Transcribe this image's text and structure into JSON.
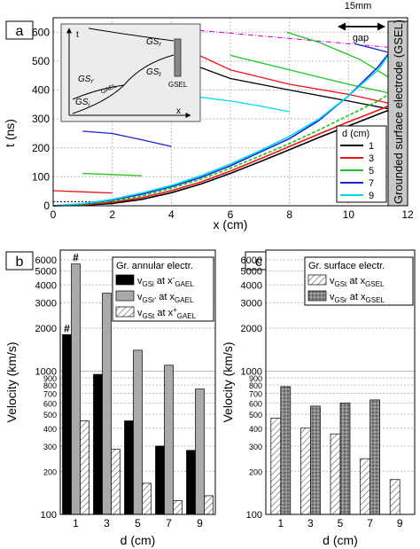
{
  "chart_data": [
    {
      "type": "line",
      "panel_label": "a",
      "xlabel": "x (cm)",
      "ylabel": "t (ns)",
      "xlim": [
        0,
        12
      ],
      "ylim": [
        0,
        650
      ],
      "x_ticks": [
        0,
        2,
        4,
        6,
        8,
        10,
        12
      ],
      "y_ticks": [
        0,
        100,
        200,
        300,
        400,
        500,
        600
      ],
      "grid": true,
      "legend": {
        "title": "d (cm)",
        "placement": "right",
        "entries": [
          "1",
          "3",
          "5",
          "7",
          "9"
        ]
      },
      "colors": {
        "1": "#000000",
        "3": "#e8141c",
        "5": "#22c022",
        "7": "#1a26c8",
        "9": "#00d8f0",
        "gsel_marker": "#d000d0"
      },
      "annotations": {
        "gap_size": "15mm",
        "gap": "gap",
        "electrode": "Grounded surface electrode (GSEL)"
      },
      "inset": {
        "labels": {
          "t": "t",
          "x": "x",
          "gs_r_top": "GS",
          "gs_r_top_sub": "r",
          "gs_r_prime": "GS",
          "gs_r_prime_sub": "r'",
          "gs_t": "GS",
          "gs_t_sub": "t",
          "gs_i": "GS",
          "gs_i_sub": "i",
          "gael": "GAEL",
          "gsel": "GSEL"
        }
      },
      "series": [
        {
          "name": "1",
          "x": [
            0,
            1,
            2,
            3,
            4,
            5,
            6,
            7,
            8,
            9,
            10,
            11,
            11.35
          ],
          "y": [
            0,
            2,
            8,
            22,
            45,
            75,
            112,
            152,
            194,
            236,
            276,
            316,
            330
          ]
        },
        {
          "name": "3",
          "x": [
            0,
            1,
            2,
            3,
            4,
            5,
            6,
            7,
            8,
            9,
            10,
            11,
            11.35
          ],
          "y": [
            0,
            3,
            12,
            28,
            52,
            82,
            120,
            162,
            205,
            248,
            290,
            330,
            345
          ]
        },
        {
          "name": "5",
          "x": [
            0,
            1,
            2,
            3,
            4,
            5,
            6,
            7,
            8,
            9,
            10,
            11,
            11.35
          ],
          "y": [
            0,
            5,
            16,
            34,
            60,
            92,
            130,
            172,
            215,
            262,
            312,
            362,
            385
          ]
        },
        {
          "name": "7",
          "x": [
            0,
            1,
            2,
            3,
            4,
            5,
            6,
            7,
            8,
            9,
            10,
            11,
            11.35
          ],
          "y": [
            0,
            6,
            20,
            40,
            66,
            98,
            138,
            185,
            232,
            295,
            380,
            480,
            525
          ]
        },
        {
          "name": "9",
          "x": [
            0,
            1,
            2,
            3,
            4,
            5,
            6,
            7,
            8,
            9,
            10,
            11,
            11.35
          ],
          "y": [
            0,
            7,
            22,
            44,
            70,
            104,
            144,
            190,
            240,
            300,
            380,
            470,
            520
          ]
        }
      ],
      "reflected": [
        {
          "name": "1",
          "x": [
            4.4,
            6,
            8,
            10,
            11.35
          ],
          "y": [
            500,
            440,
            400,
            362,
            335
          ]
        },
        {
          "name": "3",
          "x": [
            0,
            1,
            2
          ],
          "y": [
            52,
            48,
            44
          ]
        },
        {
          "name": "3",
          "x": [
            4.4,
            6,
            8,
            10,
            11.35
          ],
          "y": [
            545,
            470,
            420,
            385,
            355
          ]
        },
        {
          "name": "5",
          "x": [
            1,
            2,
            3
          ],
          "y": [
            112,
            108,
            104
          ]
        },
        {
          "name": "5",
          "x": [
            6,
            8,
            10,
            11.35
          ],
          "y": [
            520,
            470,
            420,
            390
          ]
        },
        {
          "name": "5",
          "x": [
            7.9,
            9,
            10.4,
            11.35
          ],
          "y": [
            600,
            565,
            505,
            445
          ]
        },
        {
          "name": "7",
          "x": [
            1,
            2,
            3,
            4
          ],
          "y": [
            258,
            250,
            228,
            205
          ]
        },
        {
          "name": "7",
          "x": [
            10.2,
            10.8,
            11.35
          ],
          "y": [
            560,
            545,
            530
          ]
        },
        {
          "name": "9",
          "x": [
            5,
            6,
            7,
            8
          ],
          "y": [
            375,
            362,
            345,
            325
          ]
        }
      ]
    },
    {
      "type": "bar",
      "panel_label": "b",
      "xlabel": "d (cm)",
      "ylabel": "Velocity (km/s)",
      "scale": "log",
      "ylim": [
        100,
        7000
      ],
      "y_ticks": [
        100,
        200,
        300,
        400,
        500,
        600,
        700,
        800,
        900,
        1000,
        2000,
        3000,
        4000,
        5000,
        6000
      ],
      "legend_title": "Gr. annular electr.",
      "categories": [
        "1",
        "3",
        "5",
        "7",
        "9"
      ],
      "series": [
        {
          "name": "v_GSi at x-_GAEL",
          "label": "v",
          "sub": "GSi",
          "mid": " at x",
          "sup": "-",
          "sub2": "GAEL",
          "fill": "black",
          "values": [
            1800,
            950,
            450,
            300,
            280
          ]
        },
        {
          "name": "v_GSr' at x_GAEL",
          "label": "v",
          "sub": "GSr'",
          "mid": " at x",
          "sup": "",
          "sub2": "GAEL",
          "fill": "gray",
          "values": [
            5600,
            3500,
            1400,
            1100,
            750
          ]
        },
        {
          "name": "v_GSt at x+_GAEL",
          "label": "v",
          "sub": "GSt",
          "mid": " at x",
          "sup": "+",
          "sub2": "GAEL",
          "fill": "hatch",
          "values": [
            450,
            285,
            165,
            125,
            135
          ]
        }
      ],
      "markers": [
        {
          "category": "1",
          "series": 0,
          "text": "#"
        },
        {
          "category": "1",
          "series": 1,
          "text": "#"
        }
      ]
    },
    {
      "type": "bar",
      "panel_label": "c",
      "xlabel": "d (cm)",
      "ylabel": "Velocity (km/s)",
      "scale": "log",
      "ylim": [
        100,
        7000
      ],
      "y_ticks": [
        100,
        200,
        300,
        400,
        500,
        600,
        700,
        800,
        900,
        1000,
        2000,
        3000,
        4000,
        5000,
        6000
      ],
      "legend_title": "Gr. surface electr.",
      "categories": [
        "1",
        "3",
        "5",
        "7",
        "9"
      ],
      "series": [
        {
          "name": "v_GSt at x_GSEL",
          "label": "v",
          "sub": "GSt",
          "mid": " at x",
          "sup": "",
          "sub2": "GSEL",
          "fill": "hatch",
          "values": [
            470,
            400,
            365,
            245,
            175
          ]
        },
        {
          "name": "v_GSr at x_GSEL",
          "label": "v",
          "sub": "GSr",
          "mid": " at x",
          "sup": "",
          "sub2": "GSEL",
          "fill": "dots",
          "values": [
            780,
            570,
            600,
            630,
            null
          ]
        }
      ]
    }
  ]
}
